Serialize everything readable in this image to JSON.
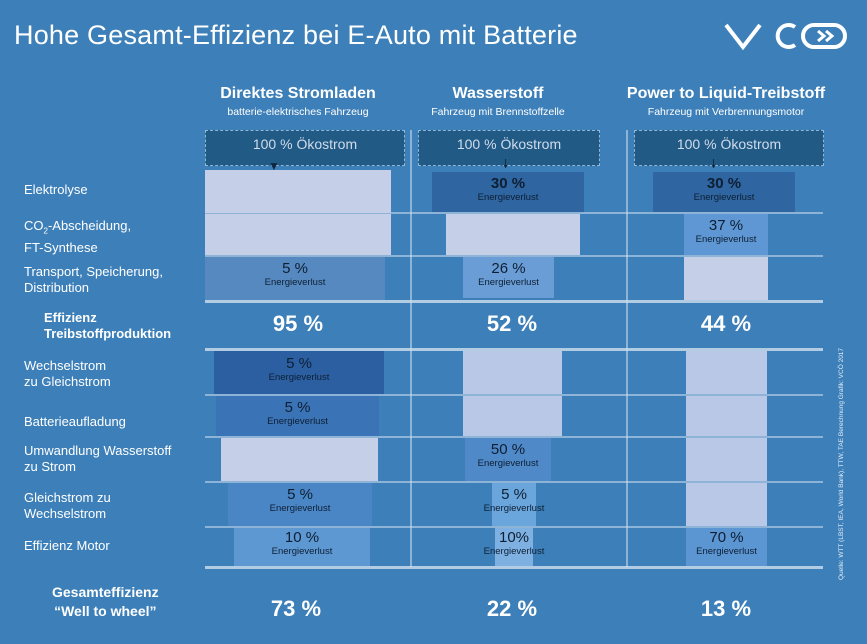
{
  "title": "Hohe Gesamt-Effizienz bei E-Auto mit Batterie",
  "logo": "VCÖ",
  "columns": [
    {
      "title": "Direktes Stromladen",
      "subtitle": "batterie-elektrisches Fahrzeug"
    },
    {
      "title": "Wasserstoff",
      "subtitle": "Fahrzeug mit Brennstoffzelle"
    },
    {
      "title": "Power to Liquid-Treibstoff",
      "subtitle": "Fahrzeug mit Verbrennungsmotor"
    }
  ],
  "oekostrom": "100 % Ökostrom",
  "rows": {
    "elektrolyse": "Elektrolyse",
    "co2_line1": "CO",
    "co2_sub": "2",
    "co2_line1b": "-Abscheidung,",
    "co2_line2": "FT-Synthese",
    "transport_line1": "Transport, Speicherung,",
    "transport_line2": "Distribution",
    "effizienz_line1": "Effizienz",
    "effizienz_line2": "Treibstoffproduktion",
    "wechsel_line1": "Wechselstrom",
    "wechsel_line2": "zu Gleichstrom",
    "batterie": "Batterieaufladung",
    "umwandlung_line1": "Umwandlung Wasserstoff",
    "umwandlung_line2": "zu Strom",
    "gleich_line1": "Gleichstrom zu",
    "gleich_line2": "Wechselstrom",
    "motor": "Effizienz Motor",
    "gesamt_line1": "Gesamteffizienz",
    "gesamt_line2": "“Well to wheel”"
  },
  "loss_label": "Energieverlust",
  "values": {
    "c1_transport": "5 %",
    "c1_effizienz": "95 %",
    "c1_wechsel": "5 %",
    "c1_batterie": "5 %",
    "c1_gleich": "5 %",
    "c1_motor": "10 %",
    "c1_gesamt": "73 %",
    "c2_elektrolyse": "30 %",
    "c2_transport": "26 %",
    "c2_effizienz": "52 %",
    "c2_umwandlung": "50 %",
    "c2_gleich": "5 %",
    "c2_motor": "10%",
    "c2_gesamt": "22 %",
    "c3_elektrolyse": "30 %",
    "c3_co2": "37 %",
    "c3_effizienz": "44 %",
    "c3_motor": "70 %",
    "c3_gesamt": "13 %"
  },
  "source": "Quelle: WTT (LBST, IEA, World Bank), TTW, TAE Berechnung Grafik: VCÖ 2017",
  "colors": {
    "background": "#3d7fb8",
    "light_bar": "#c5cfe8",
    "dark_bar": "#2a5f94",
    "oeko_box": "#225a86"
  }
}
